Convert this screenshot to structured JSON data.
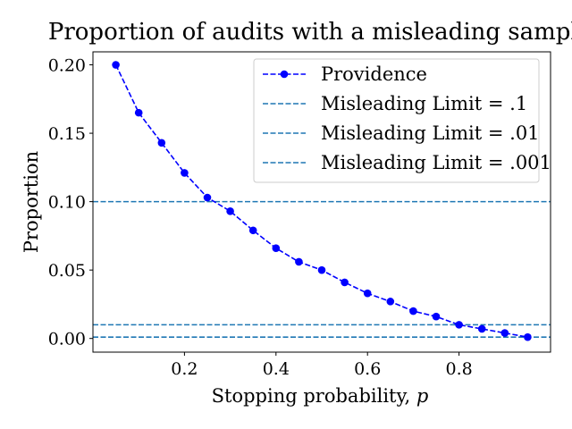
{
  "chart_data": {
    "type": "line",
    "title": "Proportion of audits with a misleading sample",
    "xlabel": "Stopping probability, ",
    "xlabel_var": "p",
    "ylabel": "Proportion",
    "xlim": [
      0.0,
      1.0
    ],
    "ylim": [
      -0.01,
      0.2095
    ],
    "xticks": [
      0.2,
      0.4,
      0.6,
      0.8
    ],
    "xtick_labels": [
      "0.2",
      "0.4",
      "0.6",
      "0.8"
    ],
    "yticks": [
      0.0,
      0.05,
      0.1,
      0.15,
      0.2
    ],
    "ytick_labels": [
      "0.00",
      "0.05",
      "0.10",
      "0.15",
      "0.20"
    ],
    "grid": false,
    "legend_position": "top-right",
    "series": [
      {
        "name": "Providence",
        "style": "dashed-with-markers",
        "color": "#0000ff",
        "x": [
          0.05,
          0.1,
          0.15,
          0.2,
          0.25,
          0.3,
          0.35,
          0.4,
          0.45,
          0.5,
          0.55,
          0.6,
          0.65,
          0.7,
          0.75,
          0.8,
          0.85,
          0.9,
          0.95
        ],
        "y": [
          0.2,
          0.165,
          0.143,
          0.121,
          0.103,
          0.093,
          0.079,
          0.066,
          0.056,
          0.05,
          0.041,
          0.033,
          0.027,
          0.02,
          0.016,
          0.01,
          0.007,
          0.004,
          0.001
        ]
      }
    ],
    "hlines": [
      {
        "name": "Misleading Limit = .1",
        "y": 0.1,
        "color": "#1f77b4"
      },
      {
        "name": "Misleading Limit = .01",
        "y": 0.01,
        "color": "#1f77b4"
      },
      {
        "name": "Misleading Limit = .001",
        "y": 0.001,
        "color": "#1f77b4"
      }
    ]
  }
}
